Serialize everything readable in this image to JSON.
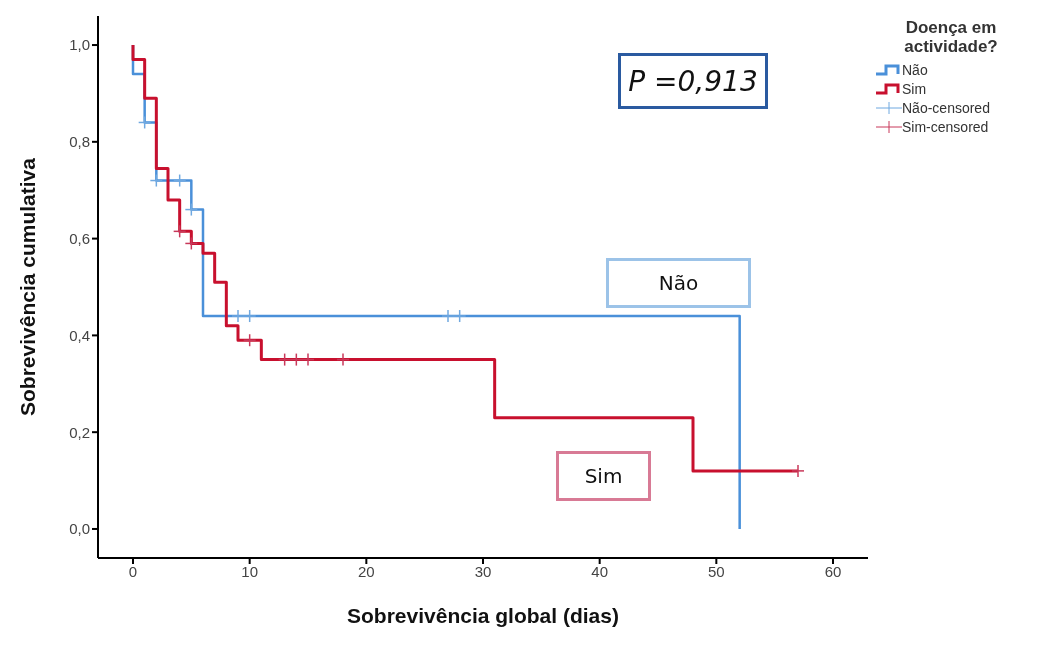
{
  "chart_data": {
    "type": "step",
    "xlabel": "Sobrevivência global (dias)",
    "ylabel": "Sobrevivência cumulativa",
    "legend_title": "Doença em actividade?",
    "legend": "top right",
    "grid": false,
    "xlim": [
      -3,
      63
    ],
    "xticks": [
      0,
      10,
      20,
      30,
      40,
      50,
      60
    ],
    "ylim": [
      -0.06,
      1.06
    ],
    "yticks": [
      {
        "value": 0,
        "label": "0,0"
      },
      {
        "value": 0.2,
        "label": "0,2"
      },
      {
        "value": 0.4,
        "label": "0,4"
      },
      {
        "value": 0.6,
        "label": "0,6"
      },
      {
        "value": 0.8,
        "label": "0,8"
      },
      {
        "value": 1,
        "label": "1,0"
      }
    ],
    "annotations": [
      "P =0,913",
      "Não",
      "Sim"
    ],
    "series": [
      {
        "name": "Não",
        "color": "#4a90d9",
        "x": [
          0,
          0,
          1,
          2,
          5,
          6,
          52
        ],
        "values": [
          1,
          0.94,
          0.84,
          0.72,
          0.66,
          0.44,
          0
        ]
      },
      {
        "name": "Sim",
        "color": "#c8102e",
        "x": [
          0,
          0,
          1,
          2,
          3,
          4,
          5,
          6,
          7,
          8,
          9,
          11,
          31,
          48,
          57
        ],
        "values": [
          1,
          0.97,
          0.89,
          0.745,
          0.68,
          0.615,
          0.59,
          0.57,
          0.51,
          0.42,
          0.39,
          0.35,
          0.23,
          0.12,
          0.12
        ]
      },
      {
        "name": "Não-censored",
        "type": "scatter",
        "marker": "cross",
        "color": "#6fa8e0",
        "x": [
          1,
          2,
          4,
          5,
          9,
          10,
          27,
          28
        ],
        "values": [
          0.84,
          0.72,
          0.72,
          0.66,
          0.44,
          0.44,
          0.44,
          0.44
        ]
      },
      {
        "name": "Sim-censored",
        "type": "scatter",
        "marker": "cross",
        "color": "#c8385a",
        "x": [
          4,
          5,
          10,
          13,
          14,
          15,
          18,
          57
        ],
        "values": [
          0.615,
          0.59,
          0.39,
          0.35,
          0.35,
          0.35,
          0.35,
          0.12
        ]
      }
    ]
  }
}
